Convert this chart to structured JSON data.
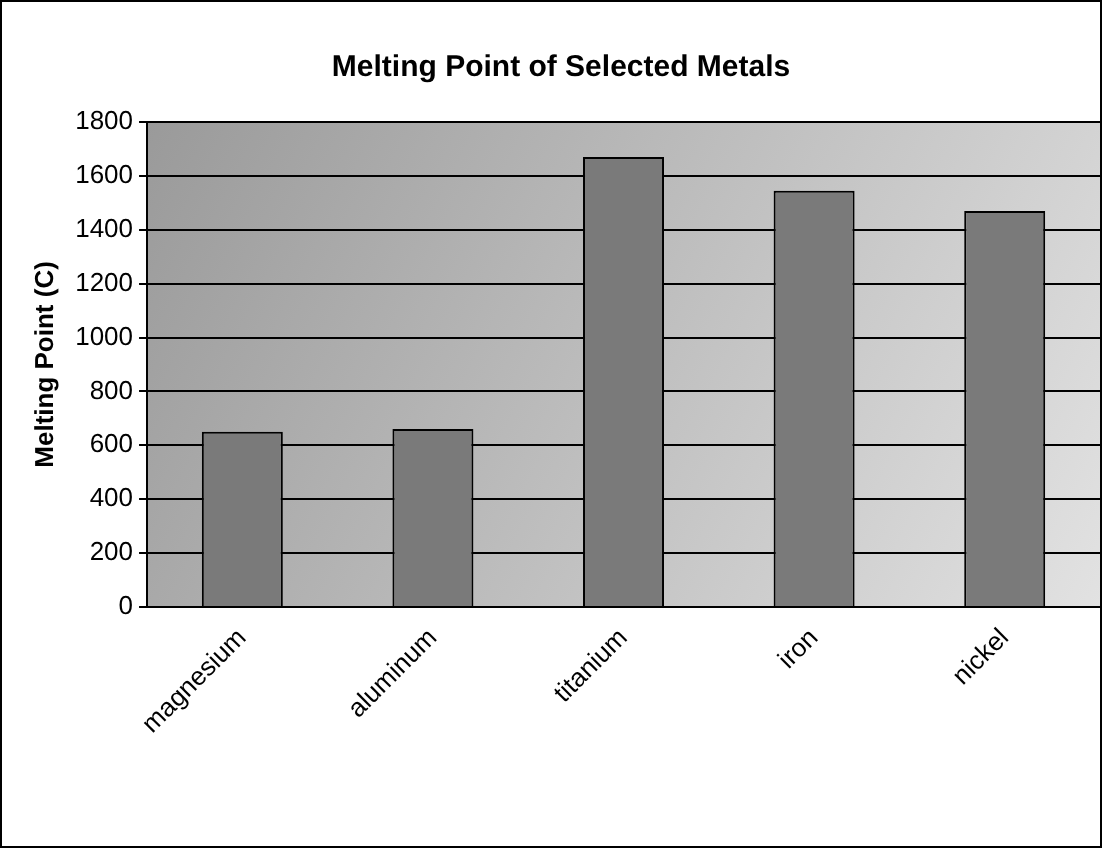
{
  "chart_data": {
    "type": "bar",
    "title": "Melting Point of Selected Metals",
    "ylabel": "Melting Point (C)",
    "categories": [
      "magnesium",
      "aluminum",
      "titanium",
      "iron",
      "nickel"
    ],
    "values": [
      650,
      660,
      1670,
      1545,
      1470
    ],
    "color": "#7a7a7a",
    "ylim": [
      0,
      1800
    ],
    "yticks": [
      0,
      200,
      400,
      600,
      800,
      1000,
      1200,
      1400,
      1600,
      1800
    ],
    "grid": "y",
    "legend": false
  }
}
